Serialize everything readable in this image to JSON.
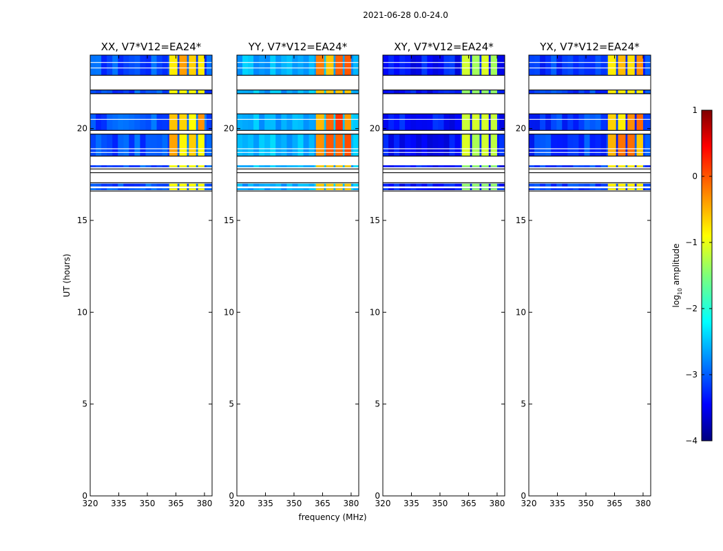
{
  "chart_data": {
    "type": "heatmap",
    "suptitle": "2021-06-28 0.0-24.0",
    "xlabel": "frequency (MHz)",
    "ylabel": "UT (hours)",
    "xlim": [
      320,
      384
    ],
    "ylim": [
      0,
      24
    ],
    "xticks": [
      320,
      335,
      350,
      365,
      380
    ],
    "yticks": [
      0,
      5,
      10,
      15,
      20
    ],
    "panels": [
      {
        "title": "XX, V7*V12=EA24*",
        "base_level": -3.0,
        "band_level": -0.9,
        "band_hot": -0.3
      },
      {
        "title": "YY, V7*V12=EA24*",
        "base_level": -2.5,
        "band_level": -0.6,
        "band_hot": 0.2
      },
      {
        "title": "XY, V7*V12=EA24*",
        "base_level": -3.3,
        "band_level": -1.4,
        "band_hot": -1.0
      },
      {
        "title": "YX, V7*V12=EA24*",
        "base_level": -3.1,
        "band_level": -0.8,
        "band_hot": -0.1
      }
    ],
    "data_blocks_ut": [
      [
        22.9,
        24.0
      ],
      [
        21.9,
        22.1
      ],
      [
        19.9,
        20.8
      ],
      [
        18.5,
        19.7
      ],
      [
        17.9,
        18.0
      ],
      [
        16.85,
        17.0
      ],
      [
        16.65,
        16.75
      ]
    ],
    "white_lines_ut": [
      23.6,
      23.3,
      20.5,
      19.8,
      18.9,
      18.7
    ],
    "black_lines_ut": [
      22.9,
      22.1,
      21.9,
      20.8,
      19.9,
      19.7,
      18.5,
      17.8,
      17.6,
      17.05,
      16.6
    ],
    "rfi_band_mhz": [
      361,
      375
    ],
    "rfi_stripes_mhz": [
      [
        361.5,
        365.8
      ],
      [
        366.8,
        370.8
      ],
      [
        371.8,
        375.6
      ],
      [
        376.6,
        380.0
      ]
    ],
    "colorbar": {
      "label_prefix": "log",
      "label_sub": "10",
      "label_suffix": " amplitude",
      "min": -4,
      "max": 1,
      "ticks": [
        1,
        0,
        -1,
        -2,
        -3,
        -4
      ],
      "tick_labels": [
        "1",
        "0",
        "−1",
        "−2",
        "−3",
        "−4"
      ],
      "colormap": "jet"
    }
  }
}
